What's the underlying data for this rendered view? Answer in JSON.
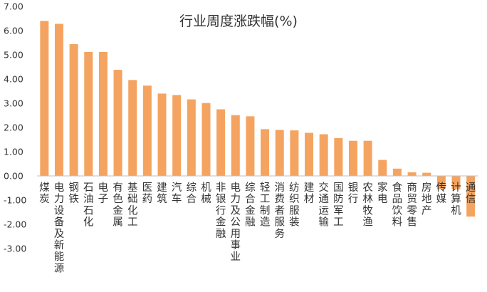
{
  "chart_data": {
    "type": "bar",
    "title": "行业周度涨跌幅(%)",
    "xlabel": "",
    "ylabel": "",
    "ylim": [
      -3.0,
      7.0
    ],
    "yticks": [
      "7.00",
      "6.00",
      "5.00",
      "4.00",
      "3.00",
      "2.00",
      "1.00",
      "0.00",
      "-1.00",
      "-2.00",
      "-3.00"
    ],
    "grid": false,
    "legend": "none",
    "bar_color": "#F4A460",
    "categories": [
      "煤炭",
      "电力设备及新能源",
      "钢铁",
      "石油石化",
      "电子",
      "有色金属",
      "基础化工",
      "医药",
      "建筑",
      "汽车",
      "综合",
      "机械",
      "非银行金融",
      "电力及公用事业",
      "综合金融",
      "轻工制造",
      "消费者服务",
      "纺织服装",
      "建材",
      "交通运输",
      "国防军工",
      "银行",
      "农林牧渔",
      "家电",
      "食品饮料",
      "商贸零售",
      "房地产",
      "传媒",
      "计算机",
      "通信"
    ],
    "values": [
      6.4,
      6.28,
      5.44,
      5.12,
      5.12,
      4.38,
      3.96,
      3.73,
      3.4,
      3.34,
      3.16,
      3.01,
      2.75,
      2.51,
      2.46,
      1.93,
      1.9,
      1.88,
      1.78,
      1.72,
      1.56,
      1.45,
      1.45,
      0.66,
      0.3,
      0.15,
      0.13,
      -0.55,
      -0.55,
      -1.68
    ]
  }
}
